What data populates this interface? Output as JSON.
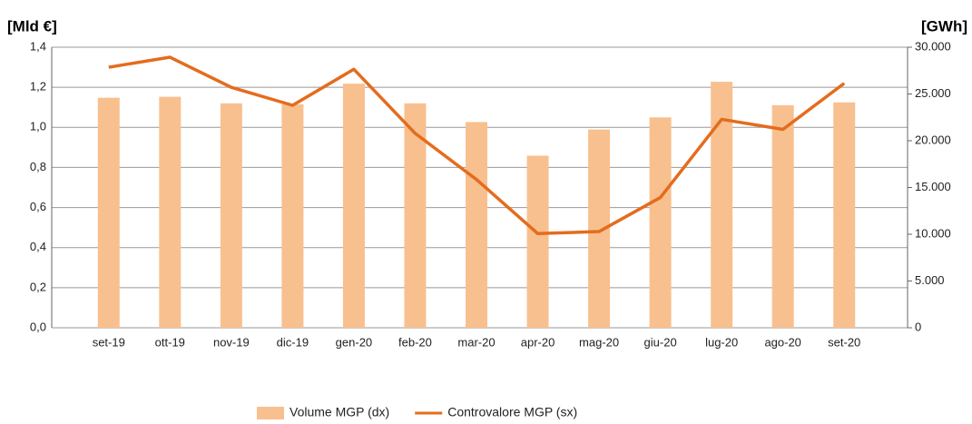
{
  "chart_data": {
    "type": "bar+line",
    "y_label": "[Mld €]",
    "y2_label": "[GWh]",
    "categories": [
      "set-19",
      "ott-19",
      "nov-19",
      "dic-19",
      "gen-20",
      "feb-20",
      "mar-20",
      "apr-20",
      "mag-20",
      "giu-20",
      "lug-20",
      "ago-20",
      "set-20"
    ],
    "series": [
      {
        "name": "Volume MGP (dx)",
        "color": "#f8c08f",
        "type": "bar",
        "axis": "y2",
        "values": [
          24600,
          24700,
          24000,
          23900,
          26100,
          24000,
          22000,
          18400,
          21200,
          22500,
          26300,
          23800,
          24100
        ]
      },
      {
        "name": "Controvalore MGP (sx)",
        "color": "#e46c1e",
        "type": "line",
        "values": [
          1.3,
          1.35,
          1.2,
          1.11,
          1.29,
          0.97,
          0.74,
          0.47,
          0.48,
          0.65,
          1.04,
          0.99,
          1.22
        ]
      }
    ],
    "ylim": [
      0,
      1.4
    ],
    "yticks": [
      {
        "value": 0,
        "label": "0,0"
      },
      {
        "value": 0.2,
        "label": "0,2"
      },
      {
        "value": 0.4,
        "label": "0,4"
      },
      {
        "value": 0.6,
        "label": "0,6"
      },
      {
        "value": 0.8,
        "label": "0,8"
      },
      {
        "value": 1.0,
        "label": "1,0"
      },
      {
        "value": 1.2,
        "label": "1,2"
      },
      {
        "value": 1.4,
        "label": "1,4"
      }
    ],
    "y2lim": [
      0,
      30000
    ],
    "y2ticks": [
      0,
      {
        "value": 5000,
        "label": "5.000"
      },
      {
        "value": 10000,
        "label": "10.000"
      },
      {
        "value": 15000,
        "label": "15.000"
      },
      {
        "value": 20000,
        "label": "20.000"
      },
      {
        "value": 25000,
        "label": "25.000"
      },
      {
        "value": 30000,
        "label": "30.000"
      }
    ],
    "grid": true,
    "legend": "bottom"
  }
}
